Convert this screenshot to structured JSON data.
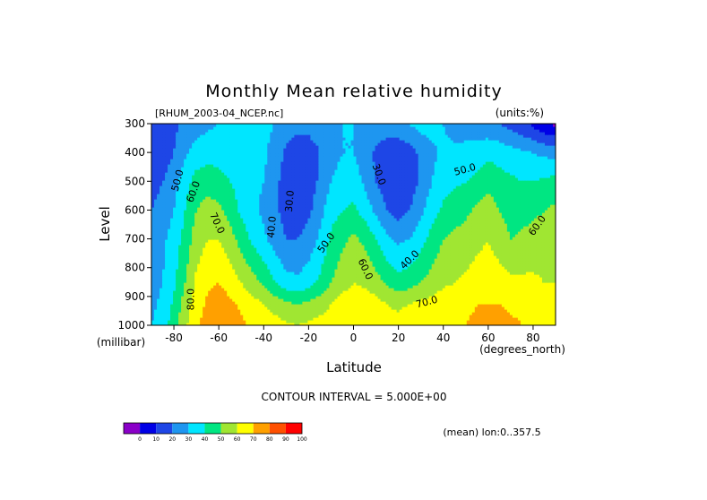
{
  "chart_data": {
    "type": "heatmap",
    "title": "Monthly Mean relative humidity",
    "dataset_label": "[RHUM_2003-04_NCEP.nc]",
    "units_label": "(units:%)",
    "xlabel": "Latitude",
    "x_units": "(degrees_north)",
    "ylabel": "Level",
    "y_units": "(millibar)",
    "xlim": [
      -90,
      90
    ],
    "ylim": [
      1000,
      300
    ],
    "x_ticks": [
      -80,
      -60,
      -40,
      -20,
      0,
      20,
      40,
      60,
      80
    ],
    "y_ticks": [
      300,
      400,
      500,
      600,
      700,
      800,
      900,
      1000
    ],
    "x_tick_labels": [
      "-80",
      "-60",
      "-40",
      "-20",
      "0",
      "20",
      "40",
      "60",
      "80"
    ],
    "y_tick_labels": [
      "300",
      "400",
      "500",
      "600",
      "700",
      "800",
      "900",
      "1000"
    ],
    "contour_interval_text": "CONTOUR INTERVAL = 5.000E+00",
    "mean_note": "(mean) lon:0..357.5",
    "colorbar": {
      "bounds": [
        "0",
        "10",
        "20",
        "30",
        "40",
        "50",
        "60",
        "70",
        "80",
        "90",
        "100"
      ],
      "colors": [
        "#8a00c8",
        "#0000e6",
        "#1e46e6",
        "#1e96f0",
        "#00e6ff",
        "#00e682",
        "#a0e632",
        "#ffff00",
        "#ffa000",
        "#ff5000",
        "#ff0000"
      ]
    },
    "latitudes": [
      -90,
      -85,
      -80,
      -75,
      -70,
      -65,
      -60,
      -55,
      -50,
      -45,
      -40,
      -35,
      -30,
      -25,
      -20,
      -15,
      -10,
      -5,
      0,
      5,
      10,
      15,
      20,
      25,
      30,
      35,
      40,
      45,
      50,
      55,
      60,
      65,
      70,
      75,
      80,
      85,
      90
    ],
    "levels": [
      1000,
      925,
      850,
      700,
      600,
      500,
      400,
      300
    ],
    "values": [
      [
        40,
        45,
        55,
        68,
        78,
        85,
        88,
        86,
        82,
        78,
        76,
        74,
        72,
        70,
        72,
        74,
        76,
        78,
        80,
        80,
        78,
        74,
        74,
        76,
        78,
        80,
        80,
        80,
        80,
        82,
        84,
        84,
        82,
        80,
        80,
        78,
        76
      ],
      [
        38,
        42,
        52,
        65,
        75,
        82,
        85,
        82,
        78,
        74,
        70,
        66,
        62,
        60,
        62,
        65,
        70,
        74,
        76,
        76,
        74,
        70,
        68,
        70,
        72,
        74,
        76,
        76,
        78,
        80,
        80,
        80,
        78,
        78,
        76,
        74,
        72
      ],
      [
        36,
        40,
        48,
        60,
        72,
        78,
        80,
        76,
        70,
        64,
        58,
        50,
        44,
        42,
        46,
        52,
        60,
        66,
        70,
        68,
        64,
        58,
        54,
        56,
        60,
        64,
        68,
        70,
        72,
        74,
        74,
        74,
        72,
        72,
        72,
        70,
        70
      ],
      [
        34,
        38,
        44,
        54,
        65,
        70,
        70,
        64,
        56,
        48,
        42,
        36,
        30,
        30,
        34,
        42,
        52,
        58,
        62,
        58,
        50,
        42,
        38,
        40,
        46,
        54,
        60,
        62,
        64,
        68,
        70,
        66,
        60,
        62,
        64,
        64,
        66
      ],
      [
        30,
        34,
        40,
        50,
        60,
        64,
        62,
        56,
        48,
        42,
        38,
        32,
        26,
        24,
        28,
        36,
        46,
        50,
        52,
        46,
        38,
        30,
        26,
        30,
        38,
        46,
        52,
        56,
        58,
        62,
        66,
        60,
        56,
        56,
        58,
        60,
        62
      ],
      [
        26,
        30,
        36,
        46,
        54,
        56,
        54,
        50,
        46,
        42,
        40,
        34,
        24,
        20,
        24,
        32,
        40,
        44,
        46,
        38,
        30,
        24,
        20,
        24,
        32,
        40,
        46,
        48,
        50,
        52,
        56,
        54,
        52,
        50,
        50,
        52,
        54
      ],
      [
        20,
        24,
        30,
        38,
        44,
        46,
        46,
        44,
        42,
        42,
        42,
        36,
        28,
        22,
        24,
        30,
        36,
        40,
        40,
        34,
        28,
        24,
        22,
        26,
        32,
        38,
        42,
        42,
        44,
        46,
        48,
        46,
        44,
        42,
        40,
        38,
        36
      ],
      [
        22,
        24,
        28,
        32,
        36,
        38,
        40,
        40,
        40,
        40,
        42,
        40,
        36,
        34,
        34,
        36,
        38,
        40,
        40,
        38,
        36,
        36,
        38,
        40,
        44,
        44,
        40,
        36,
        34,
        32,
        32,
        30,
        26,
        22,
        18,
        12,
        8
      ]
    ],
    "contour_labels": [
      {
        "lat": -77,
        "lev": 500,
        "text": "50.0",
        "rot": -75
      },
      {
        "lat": -70,
        "lev": 540,
        "text": "60.0",
        "rot": -70
      },
      {
        "lat": -62,
        "lev": 650,
        "text": "70.0",
        "rot": 65
      },
      {
        "lat": -71,
        "lev": 910,
        "text": "80.0",
        "rot": -90
      },
      {
        "lat": -27,
        "lev": 570,
        "text": "30.0",
        "rot": -85
      },
      {
        "lat": -35,
        "lev": 660,
        "text": "40.0",
        "rot": -85
      },
      {
        "lat": -11,
        "lev": 720,
        "text": "50.0",
        "rot": -55
      },
      {
        "lat": 4,
        "lev": 810,
        "text": "60.0",
        "rot": 65
      },
      {
        "lat": 10,
        "lev": 480,
        "text": "30.0",
        "rot": 70
      },
      {
        "lat": 26,
        "lev": 780,
        "text": "40.0",
        "rot": -45
      },
      {
        "lat": 33,
        "lev": 930,
        "text": "70.0",
        "rot": -15
      },
      {
        "lat": 50,
        "lev": 470,
        "text": "50.0",
        "rot": -15
      },
      {
        "lat": 83,
        "lev": 660,
        "text": "60.0",
        "rot": -55
      }
    ]
  }
}
